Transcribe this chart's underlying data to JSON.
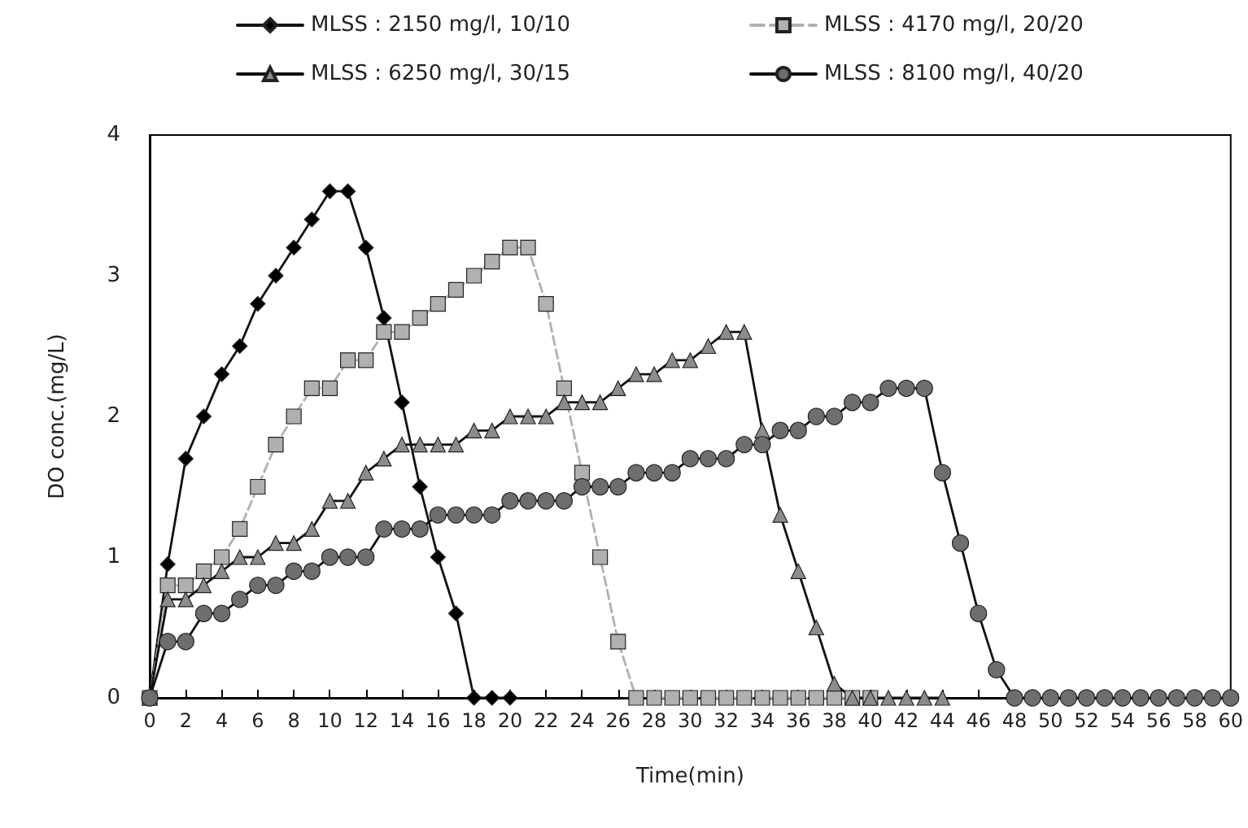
{
  "chart_data": {
    "type": "line",
    "xlabel": "Time(min)",
    "ylabel": "DO conc.(mg/L)",
    "xlim": [
      0,
      60
    ],
    "xticks": [
      0,
      2,
      4,
      6,
      8,
      10,
      12,
      14,
      16,
      18,
      20,
      22,
      24,
      26,
      28,
      30,
      32,
      34,
      36,
      38,
      40,
      42,
      44,
      46,
      48,
      50,
      52,
      54,
      56,
      58,
      60
    ],
    "ylim": [
      0,
      4
    ],
    "yticks": [
      0,
      1,
      2,
      3,
      4
    ],
    "grid": false,
    "legend": "top",
    "series": [
      {
        "name": "MLSS : 2150 mg/l, 10/10",
        "color": "#000000",
        "marker": "diamond",
        "line_style": "solid",
        "x": [
          0,
          1,
          2,
          3,
          4,
          5,
          6,
          7,
          8,
          9,
          10,
          11,
          12,
          13,
          14,
          15,
          16,
          17,
          18,
          19,
          20
        ],
        "values": [
          0,
          0.95,
          1.7,
          2.0,
          2.3,
          2.5,
          2.8,
          3.0,
          3.2,
          3.4,
          3.6,
          3.6,
          3.2,
          2.7,
          2.1,
          1.5,
          1.0,
          0.6,
          0,
          0,
          0
        ]
      },
      {
        "name": "MLSS : 4170 mg/l, 20/20",
        "color": "#b0b0b0",
        "marker": "square",
        "line_style": "dashed",
        "x": [
          0,
          1,
          2,
          3,
          4,
          5,
          6,
          7,
          8,
          9,
          10,
          11,
          12,
          13,
          14,
          15,
          16,
          17,
          18,
          19,
          20,
          21,
          22,
          23,
          24,
          25,
          26,
          27,
          28,
          29,
          30,
          31,
          32,
          33,
          34,
          35,
          36,
          37,
          38,
          39,
          40
        ],
        "values": [
          0,
          0.8,
          0.8,
          0.9,
          1.0,
          1.2,
          1.5,
          1.8,
          2.0,
          2.2,
          2.2,
          2.4,
          2.4,
          2.6,
          2.6,
          2.7,
          2.8,
          2.9,
          3.0,
          3.1,
          3.2,
          3.2,
          2.8,
          2.2,
          1.6,
          1.0,
          0.4,
          0,
          0,
          0,
          0,
          0,
          0,
          0,
          0,
          0,
          0,
          0,
          0,
          0,
          0
        ]
      },
      {
        "name": "MLSS : 6250 mg/l, 30/15",
        "color": "#8c8c8c",
        "marker": "triangle",
        "line_style": "solid",
        "x": [
          0,
          1,
          2,
          3,
          4,
          5,
          6,
          7,
          8,
          9,
          10,
          11,
          12,
          13,
          14,
          15,
          16,
          17,
          18,
          19,
          20,
          21,
          22,
          23,
          24,
          25,
          26,
          27,
          28,
          29,
          30,
          31,
          32,
          33,
          34,
          35,
          36,
          37,
          38,
          39,
          40,
          41,
          42,
          43,
          44
        ],
        "values": [
          0,
          0.7,
          0.7,
          0.8,
          0.9,
          1.0,
          1.0,
          1.1,
          1.1,
          1.2,
          1.4,
          1.4,
          1.6,
          1.7,
          1.8,
          1.8,
          1.8,
          1.8,
          1.9,
          1.9,
          2.0,
          2.0,
          2.0,
          2.1,
          2.1,
          2.1,
          2.2,
          2.3,
          2.3,
          2.4,
          2.4,
          2.5,
          2.6,
          2.6,
          1.9,
          1.3,
          0.9,
          0.5,
          0.1,
          0,
          0,
          0,
          0,
          0,
          0
        ]
      },
      {
        "name": "MLSS : 8100 mg/l, 40/20",
        "color": "#6e6e6e",
        "marker": "circle",
        "line_style": "solid",
        "x": [
          0,
          1,
          2,
          3,
          4,
          5,
          6,
          7,
          8,
          9,
          10,
          11,
          12,
          13,
          14,
          15,
          16,
          17,
          18,
          19,
          20,
          21,
          22,
          23,
          24,
          25,
          26,
          27,
          28,
          29,
          30,
          31,
          32,
          33,
          34,
          35,
          36,
          37,
          38,
          39,
          40,
          41,
          42,
          43,
          44,
          45,
          46,
          47,
          48,
          49,
          50,
          51,
          52,
          53,
          54,
          55,
          56,
          57,
          58,
          59,
          60
        ],
        "values": [
          0,
          0.4,
          0.4,
          0.6,
          0.6,
          0.7,
          0.8,
          0.8,
          0.9,
          0.9,
          1.0,
          1.0,
          1.0,
          1.2,
          1.2,
          1.2,
          1.3,
          1.3,
          1.3,
          1.3,
          1.4,
          1.4,
          1.4,
          1.4,
          1.5,
          1.5,
          1.5,
          1.6,
          1.6,
          1.6,
          1.7,
          1.7,
          1.7,
          1.8,
          1.8,
          1.9,
          1.9,
          2.0,
          2.0,
          2.1,
          2.1,
          2.2,
          2.2,
          2.2,
          1.6,
          1.1,
          0.6,
          0.2,
          0,
          0,
          0,
          0,
          0,
          0,
          0,
          0,
          0,
          0,
          0,
          0,
          0
        ]
      }
    ]
  }
}
